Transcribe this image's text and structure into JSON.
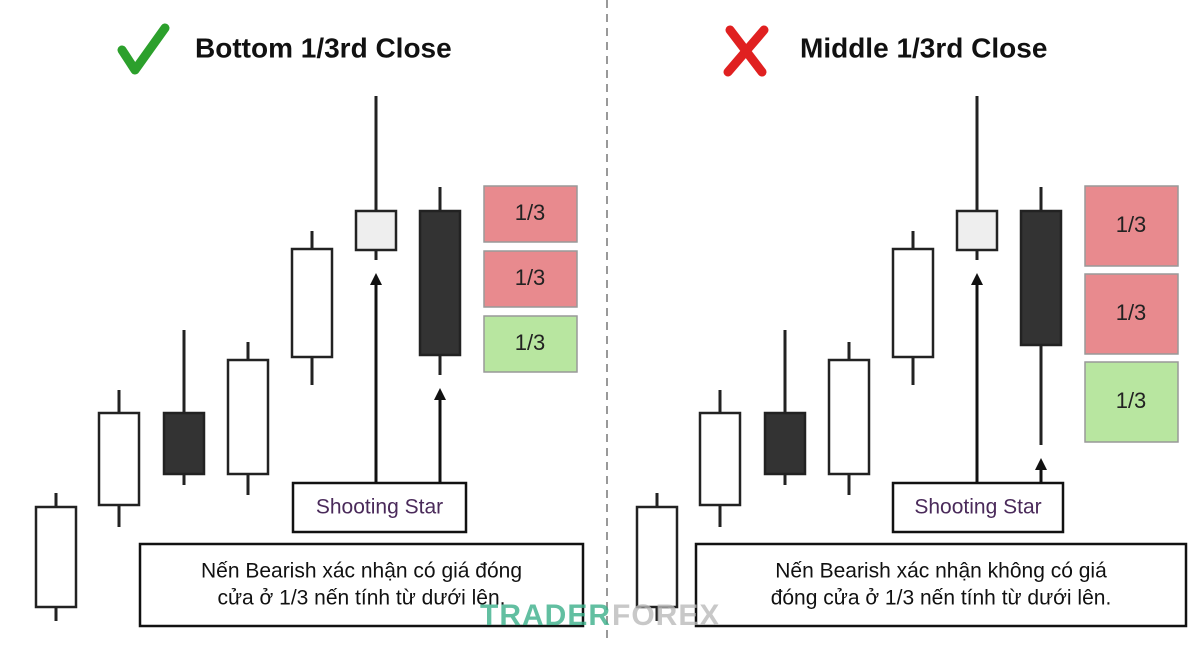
{
  "panels": [
    {
      "title": "Bottom 1/3rd Close",
      "thirds": [
        "1/3",
        "1/3",
        "1/3"
      ],
      "label": "Shooting Star",
      "caption": [
        "Nến Bearish xác nhận có giá đóng",
        "cửa ở 1/3 nến tính từ dưới lên."
      ]
    },
    {
      "title": "Middle 1/3rd Close",
      "thirds": [
        "1/3",
        "1/3",
        "1/3"
      ],
      "label": "Shooting Star",
      "caption": [
        "Nến Bearish xác nhận không có giá",
        "đóng cửa ở 1/3 nến tính từ dưới lên."
      ]
    }
  ],
  "watermark": [
    "TRADER",
    "FOREX"
  ]
}
